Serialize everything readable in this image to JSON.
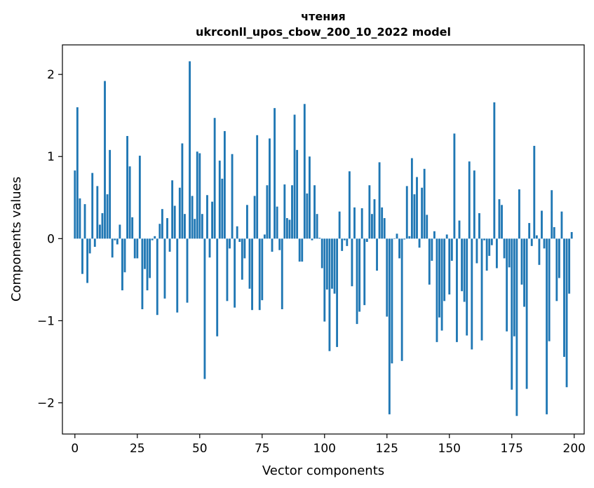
{
  "chart_data": {
    "type": "bar",
    "title": "чтения",
    "subtitle": "ukrconll_upos_cbow_200_10_2022 model",
    "xlabel": "Vector components",
    "ylabel": "Components values",
    "xlim": [
      -5,
      204
    ],
    "ylim": [
      -2.38,
      2.36
    ],
    "xticks": [
      0,
      25,
      50,
      75,
      100,
      125,
      150,
      175,
      200
    ],
    "xtick_labels": [
      "0",
      "25",
      "50",
      "75",
      "100",
      "125",
      "150",
      "175",
      "200"
    ],
    "yticks": [
      -2,
      -1,
      0,
      1,
      2
    ],
    "ytick_labels": [
      "−2",
      "−1",
      "0",
      "1",
      "2"
    ],
    "bar_color": "#1f77b4",
    "grid": false,
    "legend": "none",
    "values": [
      0.83,
      1.6,
      0.49,
      -0.43,
      0.42,
      -0.54,
      -0.18,
      0.8,
      -0.1,
      0.64,
      0.17,
      0.31,
      1.92,
      0.54,
      1.08,
      -0.23,
      -0.02,
      -0.07,
      0.17,
      -0.63,
      -0.41,
      1.25,
      0.88,
      0.26,
      -0.24,
      -0.24,
      1.01,
      -0.86,
      -0.37,
      -0.63,
      -0.48,
      -0.02,
      0.03,
      -0.93,
      0.18,
      0.36,
      -0.73,
      0.25,
      -0.16,
      0.71,
      0.4,
      -0.9,
      0.62,
      1.16,
      0.3,
      -0.78,
      2.16,
      0.52,
      0.24,
      1.06,
      1.04,
      0.3,
      -1.71,
      0.53,
      -0.23,
      0.45,
      1.47,
      -1.19,
      0.95,
      0.73,
      1.31,
      -0.76,
      -0.12,
      1.03,
      -0.84,
      0.15,
      -0.04,
      -0.5,
      -0.24,
      0.41,
      -0.61,
      -0.87,
      0.52,
      1.26,
      -0.87,
      -0.75,
      0.05,
      0.65,
      1.22,
      -0.16,
      1.59,
      0.39,
      -0.14,
      -0.86,
      0.66,
      0.25,
      0.23,
      0.65,
      1.51,
      1.08,
      -0.28,
      -0.28,
      1.64,
      0.55,
      1.0,
      -0.02,
      0.65,
      0.3,
      0.01,
      -0.36,
      -1.01,
      -0.62,
      -1.37,
      -0.61,
      -0.67,
      -1.32,
      0.33,
      -0.15,
      -0.02,
      -0.09,
      0.82,
      -0.58,
      0.38,
      -1.04,
      -0.89,
      0.37,
      -0.81,
      -0.04,
      0.65,
      0.3,
      0.48,
      -0.39,
      0.93,
      0.38,
      0.25,
      -0.95,
      -2.14,
      -1.52,
      0.0,
      0.06,
      -0.24,
      -1.49,
      -0.01,
      0.64,
      0.03,
      0.98,
      0.54,
      0.75,
      -0.11,
      0.62,
      0.85,
      0.29,
      -0.56,
      -0.27,
      0.09,
      -1.26,
      -0.96,
      -1.12,
      -0.76,
      0.05,
      -0.68,
      -0.27,
      1.28,
      -1.26,
      0.22,
      -0.64,
      -0.77,
      -1.18,
      0.94,
      -1.35,
      0.83,
      -0.3,
      0.31,
      -1.24,
      -0.02,
      -0.39,
      -0.21,
      -0.08,
      1.66,
      -0.36,
      0.48,
      0.41,
      -0.24,
      -1.13,
      -0.35,
      -1.84,
      -1.19,
      -2.16,
      0.6,
      -0.56,
      -0.83,
      -1.83,
      0.19,
      -0.09,
      1.13,
      0.04,
      -0.32,
      0.34,
      -0.12,
      -2.14,
      -1.25,
      0.59,
      0.14,
      -0.76,
      -0.48,
      0.33,
      -1.44,
      -1.81,
      -0.67,
      0.08
    ]
  }
}
